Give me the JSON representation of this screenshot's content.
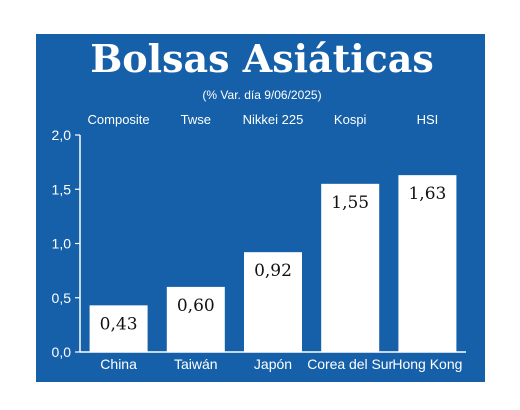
{
  "chart_data": {
    "type": "bar",
    "title": "Bolsas Asiáticas",
    "subtitle": "(% Var. día 9/06/2025)",
    "categories": [
      "China",
      "Taiwán",
      "Japón",
      "Corea del Sur",
      "Hong Kong"
    ],
    "index_names": [
      "Composite",
      "Twse",
      "Nikkei 225",
      "Kospi",
      "HSI"
    ],
    "values": [
      0.43,
      0.6,
      0.92,
      1.55,
      1.63
    ],
    "value_labels": [
      "0,43",
      "0,60",
      "0,92",
      "1,55",
      "1,63"
    ],
    "yticks": [
      0.0,
      0.5,
      1.0,
      1.5,
      2.0
    ],
    "ytick_labels": [
      "0,0",
      "0,5",
      "1,0",
      "1,5",
      "2,0"
    ],
    "ylim": [
      0,
      2.0
    ],
    "grid": false,
    "colors": {
      "background": "#1560a8",
      "bar": "#ffffff",
      "axis": "#ffffff",
      "value_text": "#111111"
    }
  }
}
